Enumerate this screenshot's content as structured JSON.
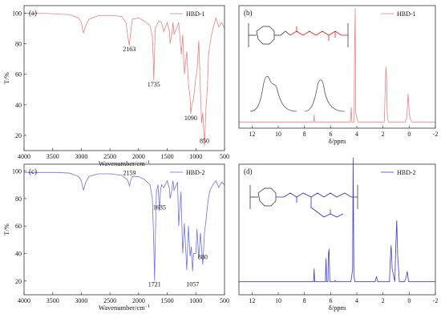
{
  "chart_data": [
    {
      "type": "line",
      "panel_label": "(a)",
      "xlabel": "Wavenumber/cm",
      "xlabel_sup": "−1",
      "ylabel": "T/%",
      "xlim": [
        4000,
        500
      ],
      "ylim": [
        10,
        105
      ],
      "xticks": [
        4000,
        3500,
        3000,
        2500,
        2000,
        1500,
        1000,
        500
      ],
      "yticks": [
        20,
        40,
        60,
        80,
        100
      ],
      "series": [
        {
          "name": "HBD-1",
          "color": "#f08080",
          "x": [
            4000,
            3700,
            3400,
            3200,
            3050,
            3000,
            2962,
            2930,
            2870,
            2700,
            2500,
            2300,
            2220,
            2190,
            2163,
            2140,
            2110,
            2000,
            1900,
            1800,
            1760,
            1745,
            1735,
            1725,
            1710,
            1650,
            1600,
            1560,
            1500,
            1460,
            1450,
            1420,
            1400,
            1380,
            1300,
            1255,
            1230,
            1200,
            1160,
            1130,
            1100,
            1090,
            1070,
            1040,
            1000,
            980,
            950,
            900,
            880,
            850,
            820,
            800,
            780,
            760,
            730,
            700,
            650,
            600,
            550,
            500
          ],
          "y": [
            100,
            100,
            99.5,
            99,
            97,
            94,
            87,
            91,
            96,
            98.5,
            98.5,
            98,
            94,
            85,
            79,
            87,
            96,
            97,
            95,
            92,
            85,
            70,
            56,
            70,
            90,
            95,
            94,
            88,
            94,
            88,
            80,
            86,
            94,
            86,
            94,
            73,
            86,
            60,
            75,
            54,
            45,
            34,
            40,
            44,
            58,
            62,
            82,
            28,
            35,
            13,
            40,
            50,
            72,
            78,
            85,
            90,
            97,
            91,
            94,
            90
          ]
        }
      ],
      "annotations": [
        {
          "text": "2163",
          "x": 2163,
          "y": 75
        },
        {
          "text": "1735",
          "x": 1735,
          "y": 52
        },
        {
          "text": "1090",
          "x": 1090,
          "y": 30
        },
        {
          "text": "850",
          "x": 850,
          "y": 15
        }
      ]
    },
    {
      "type": "line",
      "panel_label": "(b)",
      "xlabel": "δ/ppm",
      "xlim": [
        13,
        -2
      ],
      "ylim": [
        0,
        1
      ],
      "xticks": [
        12,
        10,
        8,
        6,
        4,
        2,
        0,
        -2
      ],
      "series": [
        {
          "name": "HBD-1",
          "color": "#f08080",
          "x": [
            13,
            7.3,
            7.26,
            7.22,
            5,
            4.5,
            4.42,
            4.38,
            4.2,
            4.18,
            4.12,
            4.08,
            3.9,
            1.9,
            1.82,
            1.77,
            1.73,
            1.68,
            1.6,
            0.3,
            0.2,
            0.14,
            0.09,
            0.04,
            0,
            -0.04,
            -0.1,
            -0.2,
            -2
          ],
          "y": [
            0.05,
            0.05,
            0.11,
            0.05,
            0.05,
            0.05,
            0.17,
            0.05,
            0.05,
            0.6,
            0.98,
            0.12,
            0.05,
            0.05,
            0.36,
            0.5,
            0.42,
            0.12,
            0.05,
            0.05,
            0.08,
            0.16,
            0.28,
            0.22,
            0.12,
            0.1,
            0.07,
            0.05,
            0.05
          ]
        }
      ]
    },
    {
      "type": "line",
      "panel_label": "(c)",
      "xlabel": "Wavenumber/cm",
      "xlabel_sup": "−1",
      "ylabel": "T/%",
      "xlim": [
        4000,
        500
      ],
      "ylim": [
        10,
        105
      ],
      "xticks": [
        4000,
        3500,
        3000,
        2500,
        2000,
        1500,
        1000,
        500
      ],
      "yticks": [
        20,
        40,
        60,
        80,
        100
      ],
      "series": [
        {
          "name": "HBD-2",
          "color": "#7070e0",
          "x": [
            4000,
            3700,
            3400,
            3200,
            3050,
            3000,
            2962,
            2930,
            2870,
            2700,
            2500,
            2300,
            2200,
            2180,
            2159,
            2140,
            2110,
            2000,
            1900,
            1800,
            1760,
            1740,
            1721,
            1705,
            1690,
            1660,
            1635,
            1620,
            1600,
            1560,
            1500,
            1460,
            1450,
            1420,
            1400,
            1380,
            1320,
            1300,
            1260,
            1230,
            1200,
            1160,
            1130,
            1100,
            1080,
            1057,
            1040,
            1000,
            980,
            950,
            920,
            880,
            850,
            820,
            800,
            780,
            760,
            730,
            700,
            650,
            600,
            550,
            500
          ],
          "y": [
            99,
            99,
            99,
            98.5,
            96,
            93,
            86,
            91,
            96,
            98,
            98,
            97,
            94,
            92,
            89,
            93,
            96,
            96,
            94,
            90,
            80,
            55,
            20,
            55,
            85,
            90,
            71,
            85,
            90,
            88,
            93,
            87,
            80,
            86,
            93,
            86,
            92,
            60,
            85,
            40,
            62,
            28,
            60,
            38,
            45,
            27,
            40,
            40,
            58,
            36,
            55,
            32,
            55,
            65,
            74,
            80,
            85,
            88,
            90,
            93,
            88,
            92,
            90
          ]
        }
      ],
      "annotations": [
        {
          "text": "2159",
          "x": 2159,
          "y": 97
        },
        {
          "text": "1635",
          "x": 1635,
          "y": 72
        },
        {
          "text": "1721",
          "x": 1721,
          "y": 16
        },
        {
          "text": "1057",
          "x": 1057,
          "y": 16
        },
        {
          "text": "880",
          "x": 880,
          "y": 36
        }
      ]
    },
    {
      "type": "line",
      "panel_label": "(d)",
      "xlabel": "δ/ppm",
      "xlim": [
        13,
        -2
      ],
      "ylim": [
        0,
        1
      ],
      "xticks": [
        12,
        10,
        8,
        6,
        4,
        2,
        0,
        -2
      ],
      "series": [
        {
          "name": "HBD-2",
          "color": "#3a3ae0",
          "x": [
            13,
            7.3,
            7.26,
            7.22,
            6.5,
            6.4,
            6.35,
            6.3,
            6.2,
            6.18,
            6.12,
            6.06,
            5.9,
            5.7,
            5.65,
            5.6,
            4.6,
            4.45,
            4.38,
            4.32,
            4.28,
            4.22,
            4.15,
            4.1,
            4.0,
            3.6,
            2.6,
            2.5,
            2.4,
            1.6,
            1.5,
            1.45,
            1.38,
            1.3,
            1.1,
            1.03,
            0.95,
            0.88,
            0.75,
            0.35,
            0.25,
            0.2,
            0.15,
            0.1,
            0.05,
            -2
          ],
          "y": [
            0.1,
            0.1,
            0.2,
            0.1,
            0.1,
            0.1,
            0.28,
            0.1,
            0.1,
            0.3,
            0.35,
            0.1,
            0.1,
            0.1,
            0.11,
            0.1,
            0.1,
            0.1,
            0.15,
            0.2,
            1.05,
            0.15,
            0.1,
            0.1,
            0.1,
            0.1,
            0.1,
            0.14,
            0.1,
            0.1,
            0.1,
            0.25,
            0.38,
            0.2,
            0.1,
            0.35,
            0.57,
            0.3,
            0.1,
            0.1,
            0.13,
            0.15,
            0.18,
            0.14,
            0.1,
            0.1
          ]
        }
      ]
    }
  ]
}
